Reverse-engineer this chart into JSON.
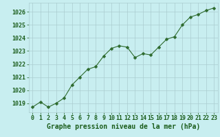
{
  "x": [
    0,
    1,
    2,
    3,
    4,
    5,
    6,
    7,
    8,
    9,
    10,
    11,
    12,
    13,
    14,
    15,
    16,
    17,
    18,
    19,
    20,
    21,
    22,
    23
  ],
  "y": [
    1018.7,
    1019.1,
    1018.7,
    1019.0,
    1019.4,
    1020.4,
    1021.0,
    1021.6,
    1021.8,
    1022.6,
    1023.2,
    1023.4,
    1023.3,
    1022.5,
    1022.8,
    1022.7,
    1023.3,
    1023.9,
    1024.1,
    1025.0,
    1025.6,
    1025.8,
    1026.1,
    1026.3
  ],
  "line_color": "#2d6a2d",
  "marker": "D",
  "marker_size": 2.5,
  "bg_color": "#c8eef0",
  "grid_color": "#aaccd0",
  "xlabel": "Graphe pression niveau de la mer (hPa)",
  "xlabel_color": "#1a5c1a",
  "xlabel_fontsize": 7,
  "tick_color": "#1a5c1a",
  "tick_fontsize": 6,
  "ylim": [
    1018.3,
    1026.7
  ],
  "yticks": [
    1019,
    1020,
    1021,
    1022,
    1023,
    1024,
    1025,
    1026
  ],
  "xlim": [
    -0.5,
    23.5
  ],
  "xticks": [
    0,
    1,
    2,
    3,
    4,
    5,
    6,
    7,
    8,
    9,
    10,
    11,
    12,
    13,
    14,
    15,
    16,
    17,
    18,
    19,
    20,
    21,
    22,
    23
  ]
}
